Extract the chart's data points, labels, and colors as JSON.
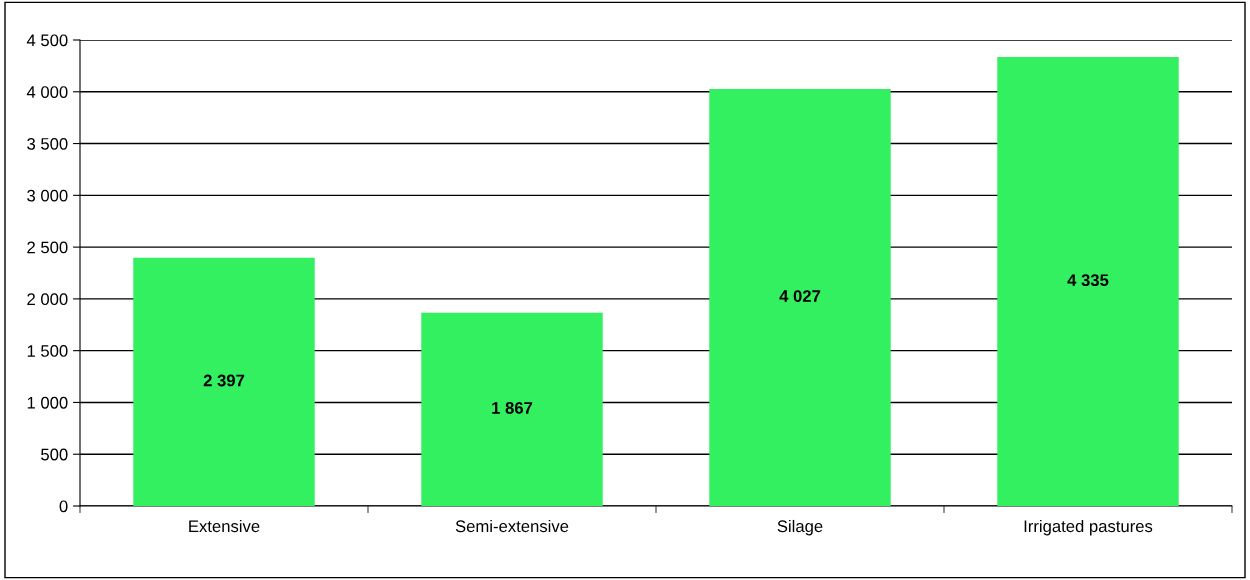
{
  "chart_data": {
    "type": "bar",
    "categories": [
      "Extensive",
      "Semi-extensive",
      "Silage",
      "Irrigated pastures"
    ],
    "values": [
      2397,
      1867,
      4027,
      4335
    ],
    "value_labels": [
      "2 397",
      "1 867",
      "4 027",
      "4 335"
    ],
    "color": "#33f060",
    "ylim": [
      0,
      4500
    ],
    "yticks": [
      0,
      500,
      {
        "value": 1000,
        "label": "1 000"
      },
      {
        "value": 1500,
        "label": "1 500"
      },
      {
        "value": 2000,
        "label": "2 000"
      },
      {
        "value": 2500,
        "label": "2 500"
      },
      {
        "value": 3000,
        "label": "3 000"
      },
      {
        "value": 3500,
        "label": "3 500"
      },
      {
        "value": 4000,
        "label": "4 000"
      },
      {
        "value": 4500,
        "label": "4 500"
      }
    ],
    "grid": "y"
  }
}
